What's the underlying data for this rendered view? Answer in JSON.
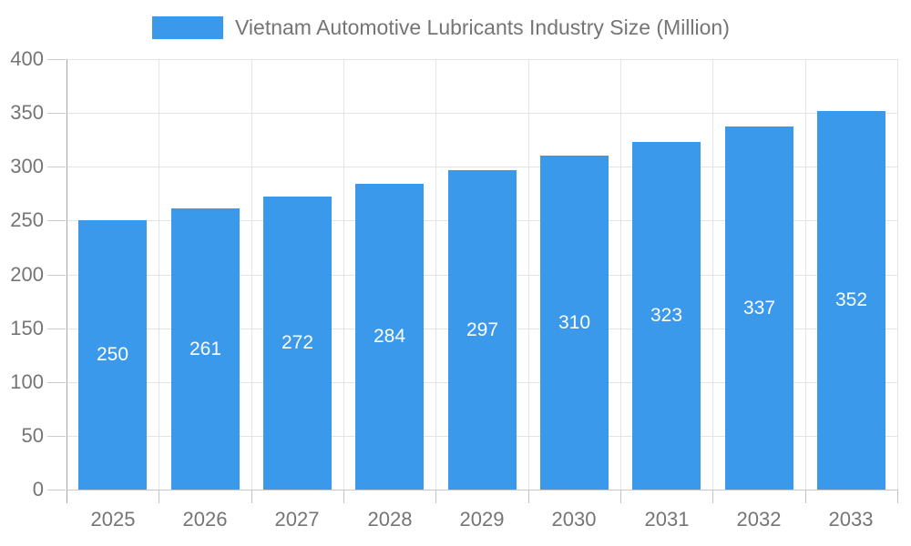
{
  "chart_data": {
    "type": "bar",
    "title": "Vietnam Automotive Lubricants Industry Size (Million)",
    "categories": [
      "2025",
      "2026",
      "2027",
      "2028",
      "2029",
      "2030",
      "2031",
      "2032",
      "2033"
    ],
    "values": [
      250,
      261,
      272,
      284,
      297,
      310,
      323,
      337,
      352
    ],
    "xlabel": "",
    "ylabel": "",
    "ylim": [
      0,
      400
    ],
    "ytick_step": 50,
    "yticks": [
      0,
      50,
      100,
      150,
      200,
      250,
      300,
      350,
      400
    ],
    "grid": true,
    "legend_position": "top",
    "colors": {
      "bar": "#3b99ec",
      "bar_label": "#ffffff",
      "axis_text": "#757575",
      "grid_line": "#e4e4e8",
      "axis_line_left": "#a6a6a6",
      "axis_line_bottom": "#c8c8c8",
      "tick": "#c2c2c2",
      "background": "#ffffff"
    }
  }
}
